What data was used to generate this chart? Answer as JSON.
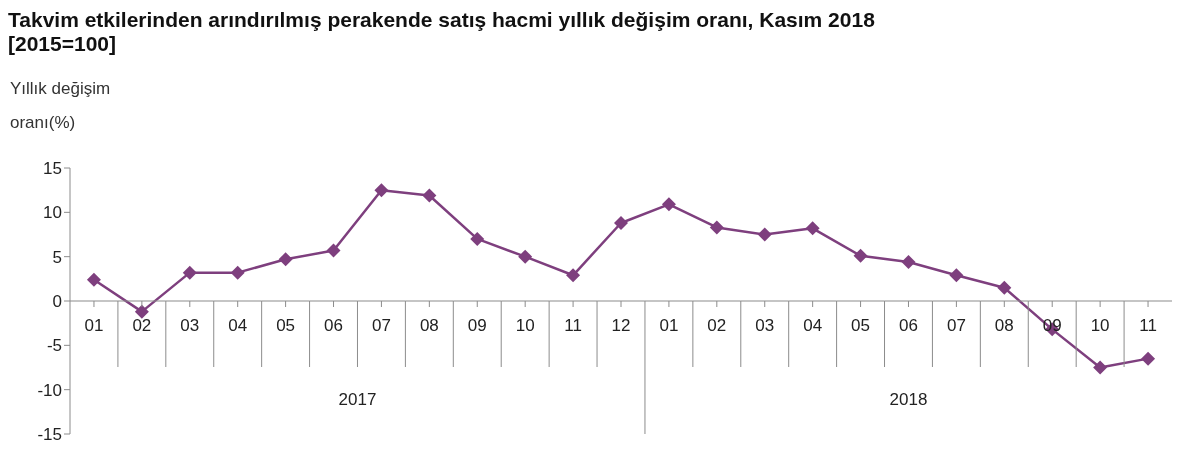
{
  "chart_data": {
    "type": "line",
    "title": "Takvim etkilerinden arındırılmış perakende satış hacmi yıllık değişim oranı, Kasım 2018",
    "subtitle": "[2015=100]",
    "ylabel": "Yıllık değişim oranı(%)",
    "categories": [
      "01",
      "02",
      "03",
      "04",
      "05",
      "06",
      "07",
      "08",
      "09",
      "10",
      "11",
      "12",
      "01",
      "02",
      "03",
      "04",
      "05",
      "06",
      "07",
      "08",
      "09",
      "10",
      "11"
    ],
    "series": [
      {
        "color": "#7e3f7e",
        "values": [
          2.4,
          -1.2,
          3.2,
          3.2,
          4.7,
          5.7,
          12.5,
          11.9,
          7.0,
          5.0,
          2.9,
          8.8,
          10.9,
          8.3,
          7.5,
          8.2,
          5.1,
          4.4,
          2.9,
          1.5,
          -3.2,
          -7.5,
          -6.5
        ]
      }
    ],
    "annotations": [
      "2017",
      "2018"
    ],
    "ylim": [
      -15,
      15
    ],
    "yticks": [
      -15,
      -10,
      -5,
      0,
      5,
      10,
      15
    ],
    "grid": false,
    "legend": false,
    "marker": "diamond",
    "line_style": "solid"
  }
}
